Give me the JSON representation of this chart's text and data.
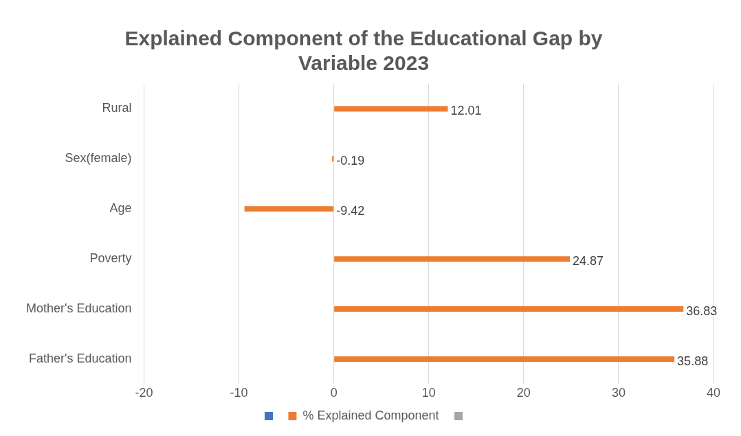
{
  "chart_data": {
    "type": "bar",
    "orientation": "horizontal",
    "title": "Explained Component of the Educational Gap by Variable 2023",
    "categories": [
      "Rural",
      "Sex(female)",
      "Age",
      "Poverty",
      "Mother's Education",
      "Father's Education"
    ],
    "series": [
      {
        "name": "% Explained Component",
        "color": "#ed7d31",
        "values": [
          12.01,
          -0.19,
          -9.42,
          24.87,
          36.83,
          35.88
        ]
      }
    ],
    "xlim": [
      -20,
      40
    ],
    "xticks": [
      -20,
      -10,
      0,
      10,
      20,
      30,
      40
    ],
    "grid": "x",
    "legend": "bottom",
    "data_labels": true
  }
}
